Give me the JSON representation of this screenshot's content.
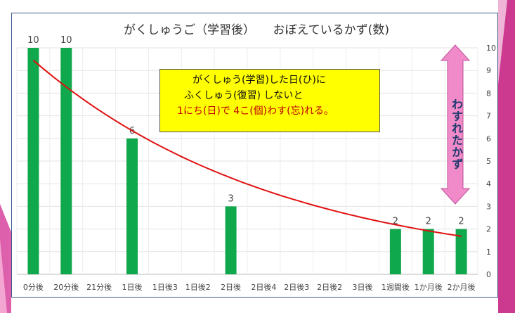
{
  "colors": {
    "bar": "#10a84c",
    "trend": "#e01010",
    "note_bg": "#ffff00",
    "note_red": "#c00000",
    "arrow": "#f08ac8",
    "side_pink": "#d94fa3"
  },
  "note": {
    "line1": "がくしゅう(学習)した日(ひ)に",
    "line2": "ふくしゅう(復習) しないと",
    "line3": "1にち(日)で 4こ(個)わす(忘)れる。"
  },
  "side_label": "わすれたかず",
  "chart_data": {
    "type": "bar",
    "title": "がくしゅうご（学習後）　　おぼえているかず(数)",
    "categories": [
      "0分後",
      "20分後",
      "21分後",
      "1日後",
      "1日後3",
      "1日後2",
      "2日後",
      "2日後4",
      "2日後3",
      "2日後2",
      "3日後",
      "1週間後",
      "1か月後",
      "2か月後"
    ],
    "values": [
      10,
      10,
      null,
      6,
      null,
      null,
      3,
      null,
      null,
      null,
      null,
      2,
      2,
      2
    ],
    "data_labels": [
      "10",
      "10",
      "",
      "6",
      "",
      "",
      "3",
      "",
      "",
      "",
      "",
      "2",
      "2",
      "2"
    ],
    "y_ticks": [
      "0",
      "1",
      "2",
      "3",
      "4",
      "5",
      "6",
      "7",
      "8",
      "9",
      "10"
    ],
    "ylim": [
      0,
      10
    ],
    "y_axis_side": "right",
    "grid": true,
    "trendline": {
      "type": "exponential",
      "start": 9.45,
      "end": 1.68
    }
  }
}
